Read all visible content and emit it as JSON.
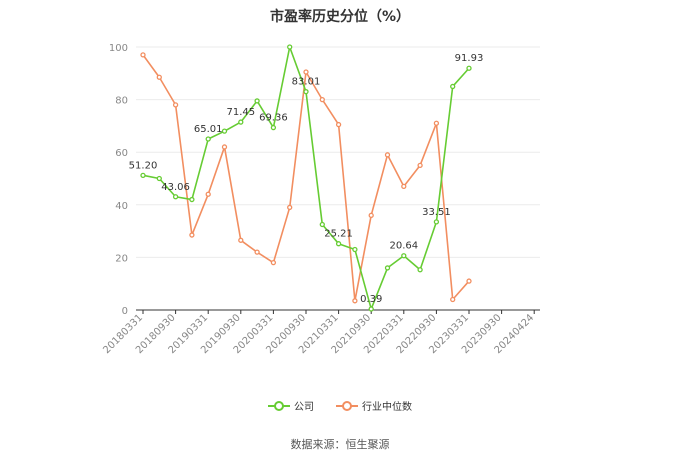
{
  "chart_data": {
    "type": "line",
    "title": "市盈率历史分位（%）",
    "x_tick_labels": [
      "20180331",
      "20180930",
      "20190331",
      "20190930",
      "20200331",
      "20200930",
      "20210331",
      "20210930",
      "20220331",
      "20220930",
      "20230331",
      "20230930",
      "20240424"
    ],
    "ylim": [
      0,
      100
    ],
    "y_ticks": [
      0,
      20,
      40,
      60,
      80,
      100
    ],
    "grid": true,
    "legend_position": "bottom",
    "series": [
      {
        "name": "公司",
        "color": "#66cc33",
        "values": [
          51.2,
          50.0,
          43.06,
          42.0,
          65.01,
          68.0,
          71.45,
          79.5,
          69.36,
          100,
          83.01,
          32.5,
          25.21,
          23.0,
          0.39,
          16.0,
          20.64,
          15.3,
          33.51,
          85.0,
          91.93
        ],
        "labels": {
          "0": "51.20",
          "2": "43.06",
          "4": "65.01",
          "6": "71.45",
          "8": "69.36",
          "10": "83.01",
          "12": "25.21",
          "14": "0.39",
          "16": "20.64",
          "18": "33.51",
          "20": "91.93"
        }
      },
      {
        "name": "行业中位数",
        "color": "#f28e60",
        "values": [
          97.0,
          88.5,
          78.0,
          28.5,
          44.0,
          62.0,
          26.5,
          22.0,
          18.0,
          39.0,
          90.5,
          80.0,
          70.5,
          3.5,
          36.0,
          59.0,
          47.0,
          55.0,
          71.0,
          4.0,
          11.0
        ]
      }
    ]
  },
  "legend": {
    "company_label": "公司",
    "industry_label": "行业中位数"
  },
  "source_text": "数据来源：恒生聚源"
}
